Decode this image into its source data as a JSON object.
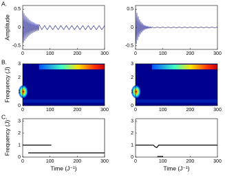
{
  "panel_labels": [
    "A.",
    "B.",
    "C."
  ],
  "chart_data": [
    {
      "type": "line",
      "ylabel": "Amplitude",
      "xlim": [
        0,
        300
      ],
      "xticks": [
        0,
        100,
        200,
        300
      ],
      "ylim": [
        -0.6,
        0.6
      ],
      "yticks": [
        0.5,
        0,
        -0.5
      ],
      "series": [
        {
          "color": "#1a1a8c",
          "x": [
            0,
            2.5,
            5,
            7.5,
            10,
            12.5,
            15,
            17.5,
            20,
            22.5,
            25,
            27.5,
            30,
            32.5,
            35,
            37.5,
            40,
            42.5,
            45,
            47.5,
            50,
            52.5,
            55,
            57.5,
            60,
            70,
            80,
            90,
            100,
            110,
            120,
            130,
            140,
            150,
            160,
            170,
            180,
            190,
            200,
            210,
            220,
            230,
            240,
            250,
            260,
            270,
            280,
            290,
            300
          ],
          "values": [
            0.45,
            -0.42,
            0.39,
            -0.36,
            0.33,
            -0.31,
            0.29,
            -0.27,
            0.25,
            -0.23,
            0.21,
            -0.2,
            0.18,
            -0.17,
            0.16,
            -0.15,
            0.14,
            -0.13,
            0.12,
            -0.11,
            0.1,
            -0.1,
            0.09,
            -0.09,
            0.08,
            -0.06,
            0.05,
            -0.06,
            0.05,
            -0.06,
            0.05,
            -0.06,
            0.05,
            -0.06,
            0.05,
            -0.06,
            0.05,
            -0.06,
            0.05,
            -0.06,
            0.05,
            -0.06,
            0.05,
            -0.06,
            0.05,
            -0.06,
            0.05,
            -0.06,
            0.05
          ]
        }
      ]
    },
    {
      "type": "line",
      "xlim": [
        0,
        300
      ],
      "xticks": [
        0,
        100,
        200,
        300
      ],
      "ylim": [
        -0.6,
        0.6
      ],
      "yticks": [
        0.5,
        0,
        -0.5
      ],
      "series": [
        {
          "color": "#1a1a8c",
          "x": [
            0,
            2.5,
            5,
            7.5,
            10,
            12.5,
            15,
            17.5,
            20,
            22.5,
            25,
            27.5,
            30,
            32.5,
            35,
            37.5,
            40,
            42.5,
            45,
            47.5,
            50,
            52.5,
            55,
            57.5,
            60,
            70,
            80,
            90,
            100,
            110,
            120,
            130,
            140,
            150,
            160,
            170,
            180,
            190,
            200,
            210,
            220,
            230,
            240,
            250,
            260,
            270,
            280,
            290,
            300
          ],
          "values": [
            0.5,
            -0.45,
            0.4,
            -0.35,
            0.3,
            -0.26,
            0.22,
            -0.19,
            0.16,
            -0.14,
            0.12,
            -0.1,
            0.08,
            -0.07,
            0.06,
            -0.05,
            0.04,
            -0.035,
            0.03,
            -0.025,
            0.02,
            -0.02,
            0.015,
            -0.015,
            0.01,
            -0.01,
            0.01,
            -0.01,
            0.01,
            -0.01,
            0.01,
            -0.01,
            0.01,
            -0.01,
            0.01,
            -0.01,
            0.01,
            -0.01,
            0.01,
            -0.01,
            0.01,
            -0.01,
            0.01,
            -0.01,
            0.01,
            -0.01,
            0.01,
            -0.01,
            0.01
          ]
        }
      ]
    },
    {
      "type": "heatmap",
      "ylabel": "Frequency (J)",
      "xlim": [
        0,
        300
      ],
      "xticks": [
        0,
        100,
        200,
        300
      ],
      "ylim": [
        0,
        3
      ],
      "yticks": [
        3,
        2,
        1,
        0
      ]
    },
    {
      "type": "heatmap",
      "xlim": [
        0,
        300
      ],
      "xticks": [
        0,
        100,
        200,
        300
      ],
      "ylim": [
        0,
        3
      ],
      "yticks": [
        3,
        2,
        1,
        0
      ]
    },
    {
      "type": "line",
      "ylabel": "Frequency (J)",
      "xlabel": "Time (J⁻¹)",
      "xlim": [
        0,
        300
      ],
      "xticks": [
        0,
        100,
        200,
        300
      ],
      "ylim": [
        0,
        3.2
      ],
      "yticks": [
        3,
        2,
        1,
        0
      ],
      "series": [
        {
          "color": "#000000",
          "x": [
            0,
            105
          ],
          "values": [
            1,
            1
          ]
        },
        {
          "color": "#000000",
          "x": [
            20,
            300
          ],
          "values": [
            0.35,
            0.35
          ]
        },
        {
          "color": "#888888",
          "linestyle": "dotted",
          "x": [
            300,
            300
          ],
          "values": [
            0,
            3.2
          ]
        }
      ]
    },
    {
      "type": "line",
      "xlabel": "Time (J⁻¹)",
      "xlim": [
        0,
        300
      ],
      "xticks": [
        0,
        100,
        200,
        300
      ],
      "ylim": [
        0,
        3.2
      ],
      "yticks": [
        3,
        2,
        1,
        0
      ],
      "series": [
        {
          "color": "#000000",
          "x": [
            0,
            65,
            72,
            78,
            85,
            300
          ],
          "values": [
            1,
            1,
            0.85,
            0.8,
            1,
            1
          ]
        },
        {
          "color": "#000000",
          "x": [
            80,
            100
          ],
          "values": [
            0.05,
            0.05
          ]
        }
      ]
    }
  ]
}
